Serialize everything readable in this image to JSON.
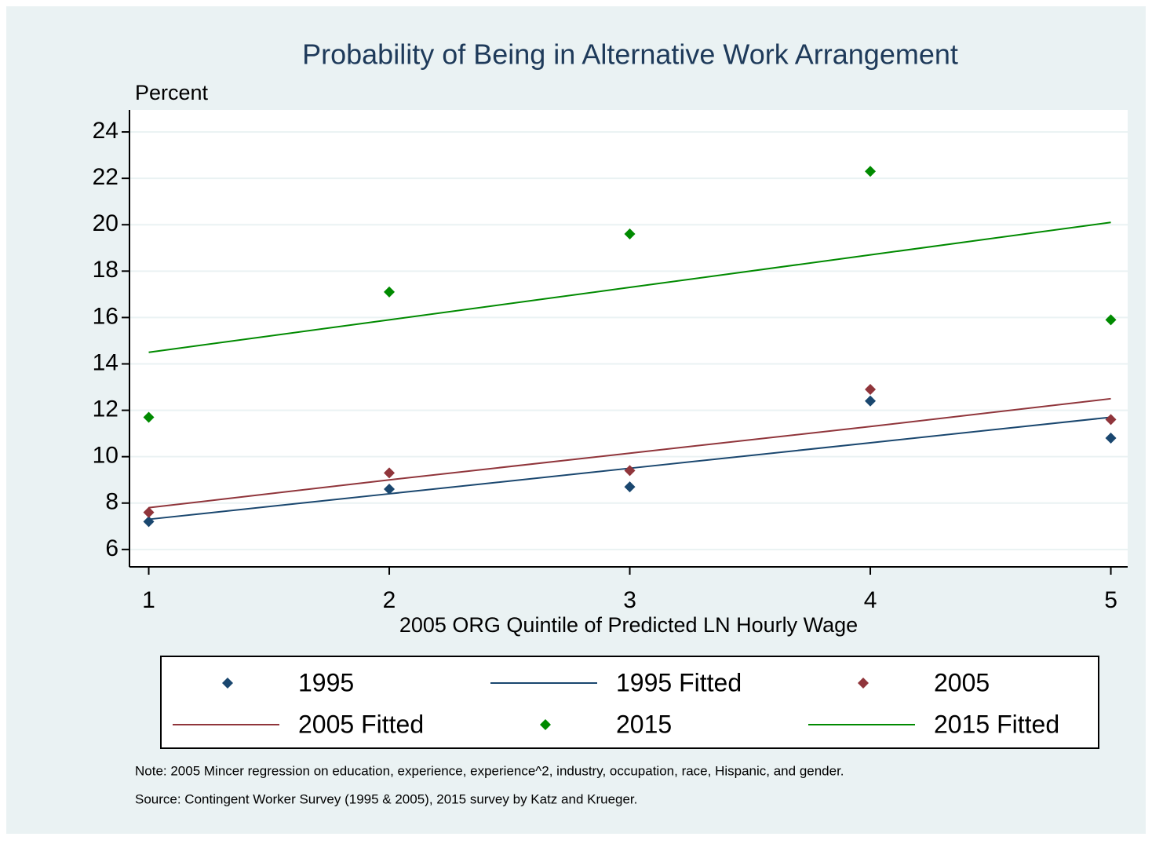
{
  "chart_data": {
    "type": "scatter",
    "title": "Probability of Being in Alternative Work Arrangement",
    "y_label": "Percent",
    "x_label": "2005 ORG Quintile of Predicted LN Hourly Wage",
    "x": [
      1,
      2,
      3,
      4,
      5
    ],
    "series": [
      {
        "name": "1995",
        "style": "marker",
        "color": "#1a476f",
        "values": [
          7.2,
          8.6,
          8.7,
          12.4,
          10.8
        ]
      },
      {
        "name": "1995 Fitted",
        "style": "line",
        "color": "#1a476f",
        "values": [
          7.3,
          8.4,
          9.5,
          10.6,
          11.7
        ]
      },
      {
        "name": "2005",
        "style": "marker",
        "color": "#90353b",
        "values": [
          7.6,
          9.3,
          9.4,
          12.9,
          11.6
        ]
      },
      {
        "name": "2005 Fitted",
        "style": "line",
        "color": "#90353b",
        "values": [
          7.8,
          9.0,
          10.15,
          11.3,
          12.5
        ]
      },
      {
        "name": "2015",
        "style": "marker",
        "color": "#008a00",
        "values": [
          11.7,
          17.1,
          19.6,
          22.3,
          15.9
        ]
      },
      {
        "name": "2015 Fitted",
        "style": "line",
        "color": "#008a00",
        "values": [
          14.5,
          15.9,
          17.3,
          18.7,
          20.1
        ]
      }
    ],
    "xlim": [
      0.92,
      5.07
    ],
    "xticks": [
      1,
      2,
      3,
      4,
      5
    ],
    "ylim": [
      5.25,
      24.95
    ],
    "yticks": [
      6,
      8,
      10,
      12,
      14,
      16,
      18,
      20,
      22,
      24
    ],
    "grid": true,
    "legend": "bottom",
    "notes": [
      "Note: 2005 Mincer regression on education, experience, experience^2, industry, occupation, race, Hispanic, and gender.",
      "Source: Contingent Worker Survey (1995 & 2005), 2015 survey by Katz and Krueger."
    ]
  }
}
